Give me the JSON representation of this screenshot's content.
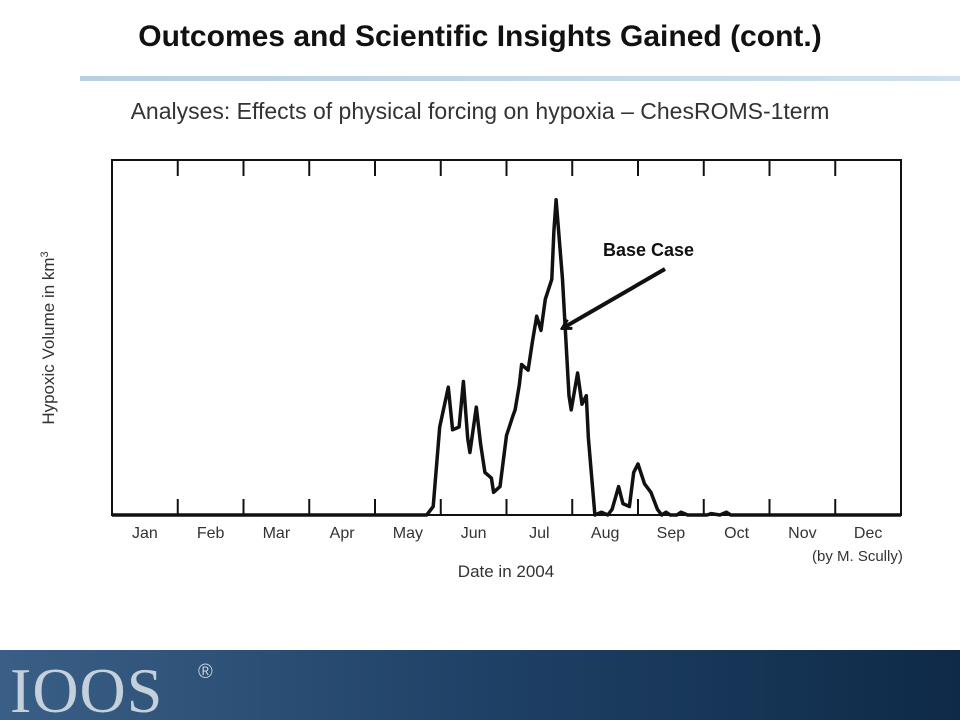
{
  "header": {
    "title": "Outcomes and Scientific Insights Gained (cont.)",
    "subtitle": "Analyses: Effects of physical forcing on hypoxia – ChesROMS-1term"
  },
  "credit": "(by M. Scully)",
  "chart_data": {
    "type": "line",
    "xlabel": "Date in 2004",
    "ylabel": "Hypoxic Volume in km",
    "ylabel_superscript": "3",
    "categories": [
      "Jan",
      "Feb",
      "Mar",
      "Apr",
      "May",
      "Jun",
      "Jul",
      "Aug",
      "Sep",
      "Oct",
      "Nov",
      "Dec"
    ],
    "xlim": [
      0,
      366
    ],
    "ylim": [
      0,
      12.5
    ],
    "grid": false,
    "annotation": {
      "text": "Base Case",
      "points_to_day": 204
    },
    "series": [
      {
        "color": "#111111",
        "x": [
          0,
          146,
          149,
          152,
          156,
          158,
          161,
          163,
          165,
          166,
          169,
          171,
          173,
          176,
          177,
          180,
          183,
          186,
          187,
          189,
          190,
          193,
          195,
          197,
          199,
          201,
          204,
          205,
          206,
          209,
          212,
          213,
          216,
          218,
          220,
          221,
          224,
          227,
          230,
          232,
          235,
          237,
          240,
          242,
          244,
          247,
          250,
          253,
          255,
          257,
          259,
          262,
          264,
          267,
          272,
          276,
          278,
          282,
          285,
          287,
          290,
          291,
          293,
          296,
          299,
          366
        ],
        "y": [
          0,
          0,
          0.3,
          3.1,
          4.5,
          3.0,
          3.1,
          4.7,
          2.7,
          2.2,
          3.8,
          2.5,
          1.5,
          1.3,
          0.8,
          1.0,
          2.8,
          3.5,
          3.7,
          4.6,
          5.3,
          5.1,
          6.1,
          7.0,
          6.5,
          7.6,
          8.3,
          10.0,
          11.1,
          8.3,
          4.2,
          3.7,
          5.0,
          3.9,
          4.2,
          2.7,
          0,
          0.1,
          0,
          0.2,
          1.0,
          0.4,
          0.3,
          1.5,
          1.8,
          1.1,
          0.8,
          0.2,
          0,
          0.1,
          0,
          0,
          0.1,
          0,
          0,
          0,
          0.05,
          0,
          0.1,
          0,
          0,
          0,
          0,
          0,
          0,
          0
        ]
      }
    ]
  },
  "footer": {
    "logo_text": "IOOS",
    "registered_mark": "®"
  }
}
